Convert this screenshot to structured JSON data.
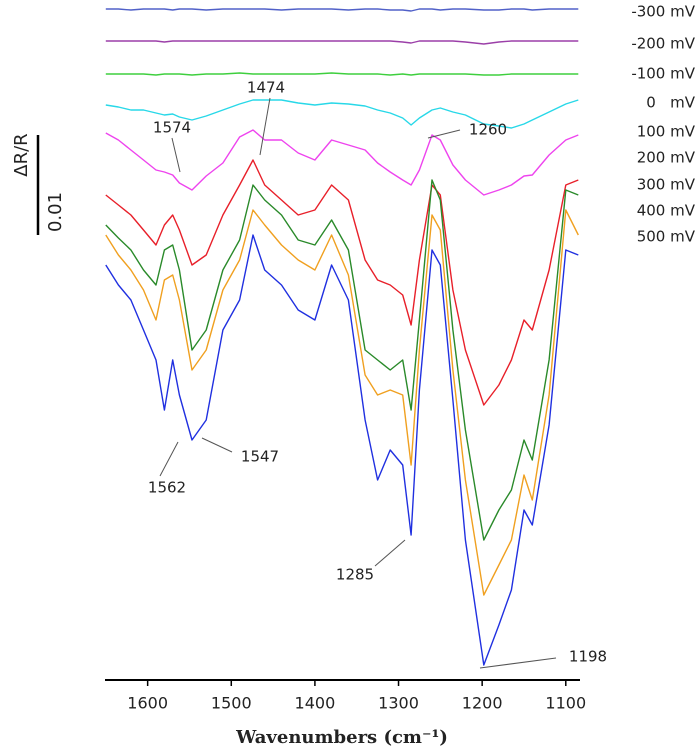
{
  "chart_data": {
    "type": "line",
    "y_label": "ΔR/R",
    "scale_bar": 0.01,
    "x_label": "Wavenumbers (cm⁻¹)",
    "xlim": [
      1651,
      1083
    ],
    "xticks": [
      1600,
      1500,
      1400,
      1300,
      1200,
      1100
    ],
    "ylim": [
      0.002,
      0.07
    ],
    "x": [
      1650,
      1635,
      1620,
      1605,
      1590,
      1580,
      1570,
      1562,
      1547,
      1530,
      1510,
      1490,
      1474,
      1460,
      1440,
      1420,
      1400,
      1380,
      1360,
      1340,
      1325,
      1310,
      1295,
      1285,
      1275,
      1260,
      1250,
      1235,
      1220,
      1198,
      1180,
      1165,
      1150,
      1140,
      1120,
      1100,
      1085
    ],
    "series": [
      {
        "name": "-300 mV",
        "color": "#5060c8",
        "values": [
          0.0691,
          0.0691,
          0.069,
          0.0691,
          0.0691,
          0.0691,
          0.069,
          0.0691,
          0.0691,
          0.069,
          0.0691,
          0.0691,
          0.0691,
          0.0691,
          0.069,
          0.0691,
          0.0691,
          0.0691,
          0.069,
          0.0691,
          0.0691,
          0.069,
          0.069,
          0.0689,
          0.0691,
          0.0691,
          0.069,
          0.0691,
          0.0691,
          0.069,
          0.069,
          0.0691,
          0.0691,
          0.069,
          0.0691,
          0.0691,
          0.0691
        ]
      },
      {
        "name": "-200 mV",
        "color": "#9b3fa8",
        "values": [
          0.0659,
          0.0659,
          0.0659,
          0.0659,
          0.0659,
          0.0658,
          0.0659,
          0.0659,
          0.0659,
          0.0659,
          0.0659,
          0.0659,
          0.0659,
          0.0659,
          0.0659,
          0.0659,
          0.0659,
          0.0659,
          0.0659,
          0.0659,
          0.0659,
          0.0659,
          0.0658,
          0.0657,
          0.0659,
          0.0659,
          0.0659,
          0.0659,
          0.0658,
          0.0656,
          0.0658,
          0.0659,
          0.0659,
          0.0659,
          0.0659,
          0.0659,
          0.0659
        ]
      },
      {
        "name": "-100 mV",
        "color": "#3ecf3e",
        "values": [
          0.0626,
          0.0626,
          0.0626,
          0.0626,
          0.0625,
          0.0626,
          0.0626,
          0.0626,
          0.0625,
          0.0626,
          0.0626,
          0.0627,
          0.0626,
          0.0626,
          0.0626,
          0.0626,
          0.0626,
          0.0627,
          0.0626,
          0.0626,
          0.0626,
          0.0625,
          0.0626,
          0.0625,
          0.0626,
          0.0626,
          0.0626,
          0.0626,
          0.0626,
          0.0625,
          0.0625,
          0.0626,
          0.0626,
          0.0626,
          0.0626,
          0.0626,
          0.0626
        ]
      },
      {
        "name": "0   mV",
        "color": "#28d8e8",
        "values": [
          0.0595,
          0.0593,
          0.059,
          0.059,
          0.0587,
          0.0585,
          0.0586,
          0.0583,
          0.058,
          0.0584,
          0.059,
          0.0596,
          0.06,
          0.06,
          0.06,
          0.0597,
          0.0595,
          0.0597,
          0.0596,
          0.0594,
          0.059,
          0.0587,
          0.0582,
          0.0575,
          0.0582,
          0.059,
          0.0592,
          0.0588,
          0.0585,
          0.0576,
          0.0574,
          0.0572,
          0.0576,
          0.058,
          0.0588,
          0.0596,
          0.06
        ]
      },
      {
        "name": "100 mV",
        "color": "#ee44ee",
        "values": [
          0.0567,
          0.056,
          0.055,
          0.054,
          0.053,
          0.0528,
          0.0525,
          0.0517,
          0.051,
          0.0524,
          0.0537,
          0.0563,
          0.057,
          0.056,
          0.056,
          0.0547,
          0.054,
          0.056,
          0.0555,
          0.055,
          0.0537,
          0.0528,
          0.052,
          0.0515,
          0.053,
          0.0565,
          0.056,
          0.0535,
          0.052,
          0.0505,
          0.051,
          0.0515,
          0.0524,
          0.0525,
          0.0545,
          0.056,
          0.0565
        ]
      },
      {
        "name": "200 mV",
        "color": "#e8202a",
        "values": [
          0.0505,
          0.0495,
          0.0485,
          0.047,
          0.0455,
          0.0475,
          0.0485,
          0.047,
          0.0435,
          0.0445,
          0.0485,
          0.0515,
          0.054,
          0.0515,
          0.05,
          0.0485,
          0.049,
          0.0515,
          0.05,
          0.044,
          0.042,
          0.0415,
          0.0405,
          0.0375,
          0.044,
          0.0515,
          0.0505,
          0.041,
          0.035,
          0.0295,
          0.0315,
          0.034,
          0.038,
          0.037,
          0.043,
          0.0515,
          0.052
        ]
      },
      {
        "name": "300 mV",
        "color": "#2a8a2a",
        "values": [
          0.0475,
          0.0462,
          0.045,
          0.043,
          0.0415,
          0.045,
          0.0455,
          0.043,
          0.035,
          0.037,
          0.043,
          0.046,
          0.0515,
          0.05,
          0.0485,
          0.046,
          0.0455,
          0.048,
          0.045,
          0.035,
          0.034,
          0.033,
          0.034,
          0.029,
          0.038,
          0.052,
          0.05,
          0.037,
          0.027,
          0.016,
          0.019,
          0.021,
          0.026,
          0.024,
          0.034,
          0.051,
          0.0505
        ]
      },
      {
        "name": "400 mV",
        "color": "#f0a020",
        "values": [
          0.0465,
          0.0445,
          0.043,
          0.041,
          0.038,
          0.042,
          0.0425,
          0.04,
          0.033,
          0.035,
          0.041,
          0.044,
          0.049,
          0.0475,
          0.0455,
          0.044,
          0.043,
          0.0465,
          0.0425,
          0.0325,
          0.0305,
          0.031,
          0.0305,
          0.0235,
          0.035,
          0.0485,
          0.047,
          0.033,
          0.022,
          0.0105,
          0.0135,
          0.016,
          0.0225,
          0.02,
          0.0305,
          0.049,
          0.0465
        ]
      },
      {
        "name": "500 mV",
        "color": "#2030e0",
        "values": [
          0.0435,
          0.0415,
          0.04,
          0.037,
          0.034,
          0.029,
          0.034,
          0.0305,
          0.026,
          0.028,
          0.037,
          0.04,
          0.0465,
          0.043,
          0.0415,
          0.039,
          0.038,
          0.0435,
          0.04,
          0.028,
          0.022,
          0.025,
          0.0235,
          0.0165,
          0.031,
          0.045,
          0.0435,
          0.03,
          0.016,
          0.0035,
          0.0075,
          0.011,
          0.019,
          0.0175,
          0.0275,
          0.045,
          0.0445
        ]
      }
    ],
    "annotations": [
      "1574",
      "1474",
      "1260",
      "1562",
      "1547",
      "1285",
      "1198"
    ]
  }
}
